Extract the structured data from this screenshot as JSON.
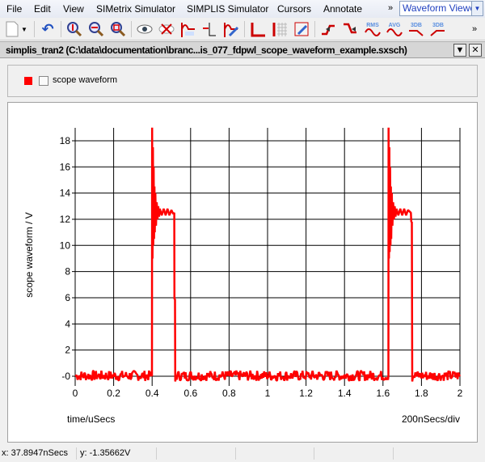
{
  "menubar": {
    "items": [
      "File",
      "Edit",
      "View",
      "SIMetrix Simulator",
      "SIMPLIS Simulator",
      "Cursors",
      "Annotate"
    ],
    "overflow": "»",
    "viewer_select": "Waveform Viewer"
  },
  "toolbar": {
    "icons": [
      "new-document-icon",
      "dropdown-icon",
      "undo-icon",
      "zoom-vertical-icon",
      "zoom-horizontal-icon",
      "zoom-box-icon",
      "show-curve-icon",
      "hide-curve-icon",
      "label-curve-icon",
      "add-axis-icon",
      "edit-curve-icon",
      "new-grid-icon",
      "add-grid-icon",
      "edit-graph-icon",
      "rising-edge-icon",
      "falling-edge-icon",
      "rms-icon",
      "avg-icon",
      "3db-low-icon",
      "3db-high-icon"
    ],
    "labels": {
      "rms": "RMS",
      "avg": "AVG",
      "db1": "3DB",
      "db2": "3DB"
    },
    "overflow": "»"
  },
  "window": {
    "title": "simplis_tran2 (C:\\data\\documentation\\branc...is_077_fdpwl_scope_waveform_example.sxsch)"
  },
  "legend": {
    "label": "scope waveform",
    "color": "#ff0000"
  },
  "status": {
    "x": "x: 37.8947nSecs",
    "y": "y: -1.35662V"
  },
  "chart_data": {
    "type": "line",
    "xlabel": "time/uSecs",
    "ylabel": "scope waveform / V",
    "xdiv": "200nSecs/div",
    "xlim": [
      0,
      2
    ],
    "ylim": [
      -0.5,
      18.9
    ],
    "grid": true,
    "xticks": [
      "0",
      "0.2",
      "0.4",
      "0.6",
      "0.8",
      "1",
      "1.2",
      "1.4",
      "1.6",
      "1.8",
      "2"
    ],
    "yticks": [
      "-0",
      "2",
      "4",
      "6",
      "8",
      "10",
      "12",
      "14",
      "16",
      "18"
    ],
    "series": [
      {
        "name": "scope waveform",
        "color": "#ff0000",
        "points": [
          [
            0,
            0
          ],
          [
            0.399,
            0
          ],
          [
            0.4,
            19
          ],
          [
            0.402,
            9
          ],
          [
            0.404,
            17.5
          ],
          [
            0.406,
            10
          ],
          [
            0.408,
            16
          ],
          [
            0.41,
            10.5
          ],
          [
            0.412,
            14.5
          ],
          [
            0.414,
            11
          ],
          [
            0.417,
            14
          ],
          [
            0.42,
            11.5
          ],
          [
            0.424,
            13.3
          ],
          [
            0.428,
            12
          ],
          [
            0.432,
            13
          ],
          [
            0.436,
            12.2
          ],
          [
            0.44,
            12.8
          ],
          [
            0.45,
            12.3
          ],
          [
            0.46,
            12.8
          ],
          [
            0.47,
            12.3
          ],
          [
            0.48,
            12.8
          ],
          [
            0.49,
            12.3
          ],
          [
            0.5,
            12.7
          ],
          [
            0.51,
            12.4
          ],
          [
            0.515,
            12.5
          ],
          [
            0.516,
            5.9
          ],
          [
            0.519,
            5.9
          ],
          [
            0.52,
            -0.4
          ],
          [
            0.53,
            0
          ],
          [
            1.628,
            0
          ],
          [
            1.629,
            19
          ],
          [
            1.631,
            9
          ],
          [
            1.633,
            17.5
          ],
          [
            1.635,
            9.5
          ],
          [
            1.637,
            16
          ],
          [
            1.639,
            10
          ],
          [
            1.641,
            14.5
          ],
          [
            1.643,
            10.5
          ],
          [
            1.646,
            14
          ],
          [
            1.649,
            11.5
          ],
          [
            1.653,
            13.3
          ],
          [
            1.657,
            12
          ],
          [
            1.661,
            13
          ],
          [
            1.665,
            12.2
          ],
          [
            1.67,
            12.8
          ],
          [
            1.68,
            12.3
          ],
          [
            1.69,
            12.8
          ],
          [
            1.7,
            12.3
          ],
          [
            1.71,
            12.8
          ],
          [
            1.72,
            12.3
          ],
          [
            1.73,
            12.7
          ],
          [
            1.745,
            12.5
          ],
          [
            1.747,
            11.8
          ],
          [
            1.75,
            11.8
          ],
          [
            1.752,
            -0.4
          ],
          [
            1.76,
            0
          ],
          [
            2,
            0
          ]
        ]
      }
    ]
  }
}
